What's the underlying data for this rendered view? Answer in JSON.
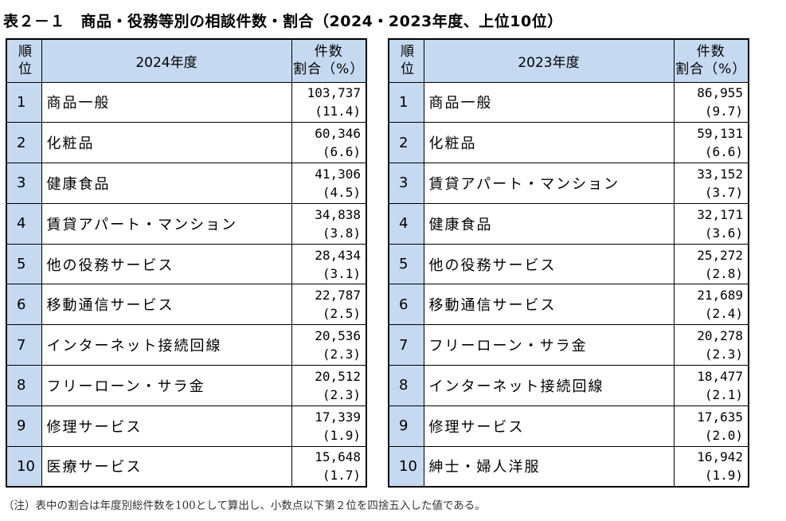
{
  "title": "表２－１　商品・役務等別の相談件数・割合（2024・2023年度、上位10位）",
  "headers": {
    "rank_line1": "順",
    "rank_line2": "位",
    "count_line1": "件数",
    "count_line2": "割合（%）"
  },
  "tables": [
    {
      "year_label": "2024年度",
      "rows": [
        {
          "rank": "1",
          "name": "商品一般",
          "count": "103,737",
          "pct": "(11.4)"
        },
        {
          "rank": "2",
          "name": "化粧品",
          "count": "60,346",
          "pct": "(6.6)"
        },
        {
          "rank": "3",
          "name": "健康食品",
          "count": "41,306",
          "pct": "(4.5)"
        },
        {
          "rank": "4",
          "name": "賃貸アパート・マンション",
          "count": "34,838",
          "pct": "(3.8)"
        },
        {
          "rank": "5",
          "name": "他の役務サービス",
          "count": "28,434",
          "pct": "(3.1)"
        },
        {
          "rank": "6",
          "name": "移動通信サービス",
          "count": "22,787",
          "pct": "(2.5)"
        },
        {
          "rank": "7",
          "name": "インターネット接続回線",
          "count": "20,536",
          "pct": "(2.3)"
        },
        {
          "rank": "8",
          "name": "フリーローン・サラ金",
          "count": "20,512",
          "pct": "(2.3)"
        },
        {
          "rank": "9",
          "name": "修理サービス",
          "count": "17,339",
          "pct": "(1.9)"
        },
        {
          "rank": "10",
          "name": "医療サービス",
          "count": "15,648",
          "pct": "(1.7)"
        }
      ]
    },
    {
      "year_label": "2023年度",
      "rows": [
        {
          "rank": "1",
          "name": "商品一般",
          "count": "86,955",
          "pct": "(9.7)"
        },
        {
          "rank": "2",
          "name": "化粧品",
          "count": "59,131",
          "pct": "(6.6)"
        },
        {
          "rank": "3",
          "name": "賃貸アパート・マンション",
          "count": "33,152",
          "pct": "(3.7)"
        },
        {
          "rank": "4",
          "name": "健康食品",
          "count": "32,171",
          "pct": "(3.6)"
        },
        {
          "rank": "5",
          "name": "他の役務サービス",
          "count": "25,272",
          "pct": "(2.8)"
        },
        {
          "rank": "6",
          "name": "移動通信サービス",
          "count": "21,689",
          "pct": "(2.4)"
        },
        {
          "rank": "7",
          "name": "フリーローン・サラ金",
          "count": "20,278",
          "pct": "(2.3)"
        },
        {
          "rank": "8",
          "name": "インターネット接続回線",
          "count": "18,477",
          "pct": "(2.1)"
        },
        {
          "rank": "9",
          "name": "修理サービス",
          "count": "17,635",
          "pct": "(2.0)"
        },
        {
          "rank": "10",
          "name": "紳士・婦人洋服",
          "count": "16,942",
          "pct": "(1.9)"
        }
      ]
    }
  ],
  "note": "（注）表中の割合は年度別総件数を100として算出し、小数点以下第２位を四捨五入した値である。",
  "colors": {
    "header_bg": "#c5d9f1",
    "border": "#000000"
  }
}
